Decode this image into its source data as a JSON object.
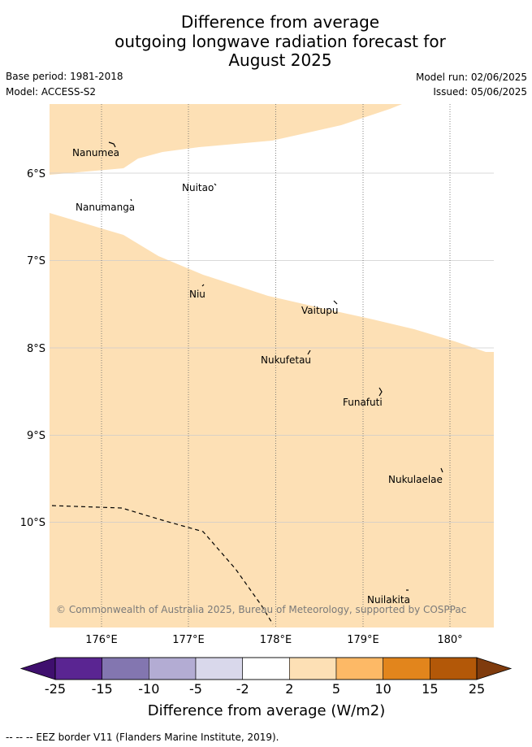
{
  "title": {
    "line1": "Difference from average",
    "line2": "outgoing longwave radiation forecast for",
    "line3": "August 2025"
  },
  "meta": {
    "base_period": "Base period: 1981-2018",
    "model": "Model: ACCESS-S2",
    "model_run": "Model run: 02/06/2025",
    "issued": "Issued: 05/06/2025"
  },
  "map": {
    "lon_range": [
      175.4,
      180.5
    ],
    "lat_range": [
      -11.2,
      -5.2
    ],
    "lat_ticks": [
      {
        "value": -6,
        "label": "6°S"
      },
      {
        "value": -7,
        "label": "7°S"
      },
      {
        "value": -8,
        "label": "8°S"
      },
      {
        "value": -9,
        "label": "9°S"
      },
      {
        "value": -10,
        "label": "10°S"
      }
    ],
    "lon_ticks": [
      {
        "value": 176,
        "label": "176°E"
      },
      {
        "value": 177,
        "label": "177°E"
      },
      {
        "value": 178,
        "label": "178°E"
      },
      {
        "value": 179,
        "label": "179°E"
      },
      {
        "value": 180,
        "label": "180°"
      }
    ],
    "fill_color": "#fde0b5",
    "copyright": "© Commonwealth of Australia 2025, Bureau of Meteorology, supported by COSPPac",
    "islands": [
      {
        "name": "Nanumea",
        "lon": 176.13,
        "lat": -5.67
      },
      {
        "name": "Nuitao",
        "lon": 177.33,
        "lat": -6.13
      },
      {
        "name": "Nanumanga",
        "lon": 176.32,
        "lat": -6.29
      },
      {
        "name": "Niu",
        "lon": 177.16,
        "lat": -7.29
      },
      {
        "name": "Vaitupu",
        "lon": 178.68,
        "lat": -7.48
      },
      {
        "name": "Nukufetau",
        "lon": 178.38,
        "lat": -8.02
      },
      {
        "name": "Funafuti",
        "lon": 179.2,
        "lat": -8.52
      },
      {
        "name": "Nukulaelae",
        "lon": 179.84,
        "lat": -9.39
      },
      {
        "name": "Nuilakita",
        "lon": 179.51,
        "lat": -10.75
      }
    ]
  },
  "colorbar": {
    "title": "Difference from average (W/m2)",
    "labels": [
      "-25",
      "-15",
      "-10",
      "-5",
      "-2",
      "2",
      "5",
      "10",
      "15",
      "25"
    ],
    "colors": [
      "#3f0f6e",
      "#5a2592",
      "#8376b0",
      "#b3acd3",
      "#d9d8eb",
      "#ffffff",
      "#fde0b5",
      "#fdb966",
      "#e2851c",
      "#b35808",
      "#7f3b0d"
    ]
  },
  "footer": {
    "eez_legend": "-- -- -- EEZ border V11 (Flanders Marine Institute, 2019)."
  }
}
